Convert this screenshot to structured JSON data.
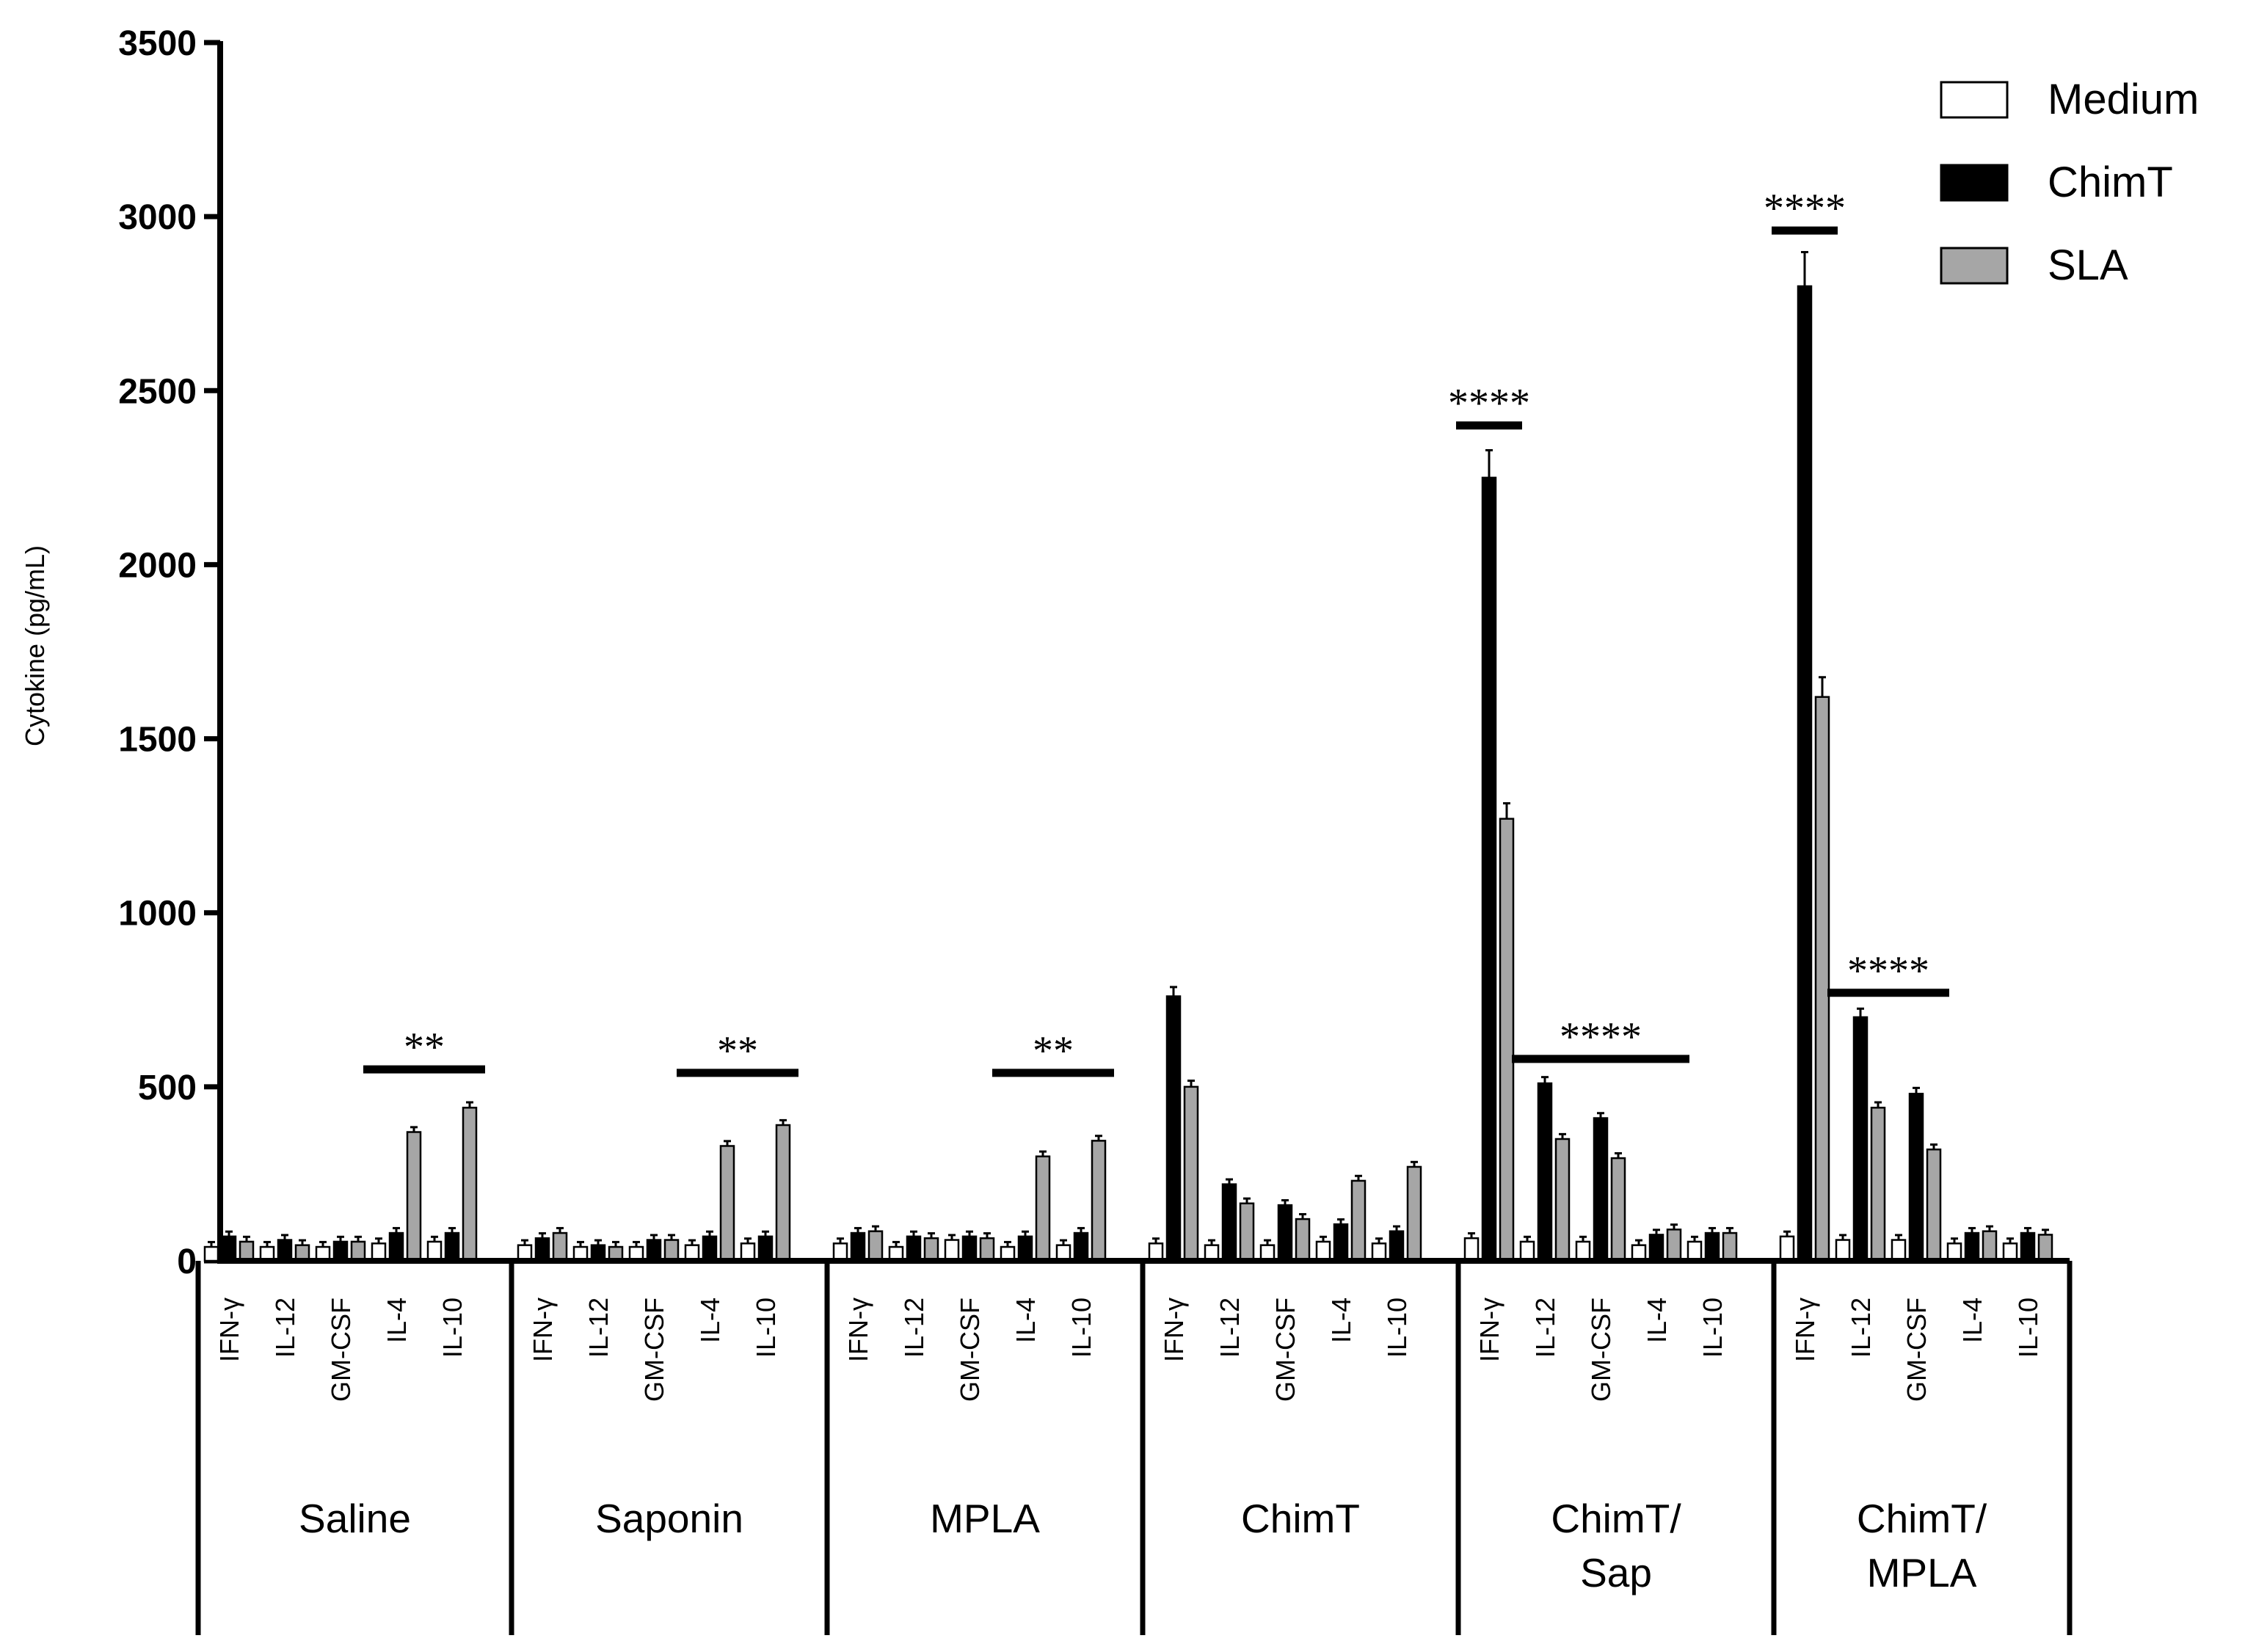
{
  "chart_data": {
    "type": "bar",
    "title": "",
    "xlabel": "",
    "ylabel": "Cytokine (pg/mL)",
    "ylim": [
      0,
      3500
    ],
    "yticks": [
      0,
      500,
      1000,
      1500,
      2000,
      2500,
      3000,
      3500
    ],
    "ytick_labels": [
      "0",
      "500",
      "1000",
      "1500",
      "2000",
      "2500",
      "3000",
      "3500"
    ],
    "cytokines": [
      "IFN-γ",
      "IL-12",
      "GM-CSF",
      "IL-4",
      "IL-10"
    ],
    "legend": [
      {
        "name": "Medium",
        "color": "#ffffff"
      },
      {
        "name": "ChimT",
        "color": "#000000"
      },
      {
        "name": "SLA",
        "color": "#a6a6a6"
      }
    ],
    "groups": [
      {
        "name": "Saline",
        "label_lines": [
          "Saline"
        ],
        "values": [
          [
            40,
            70,
            55
          ],
          [
            40,
            60,
            45
          ],
          [
            40,
            55,
            55
          ],
          [
            50,
            80,
            370
          ],
          [
            55,
            80,
            440
          ]
        ],
        "significance": [
          {
            "text": "**",
            "from": 3,
            "to": 4,
            "y": 550
          }
        ]
      },
      {
        "name": "Saponin",
        "label_lines": [
          "Saponin"
        ],
        "values": [
          [
            45,
            65,
            80
          ],
          [
            40,
            45,
            40
          ],
          [
            40,
            60,
            60
          ],
          [
            45,
            70,
            330
          ],
          [
            50,
            70,
            390
          ]
        ],
        "significance": [
          {
            "text": "**",
            "from": 3,
            "to": 4,
            "y": 540
          }
        ]
      },
      {
        "name": "MPLA",
        "label_lines": [
          "MPLA"
        ],
        "values": [
          [
            50,
            80,
            85
          ],
          [
            40,
            70,
            65
          ],
          [
            60,
            70,
            65
          ],
          [
            40,
            70,
            300
          ],
          [
            45,
            80,
            345
          ]
        ],
        "significance": [
          {
            "text": "**",
            "from": 3,
            "to": 4,
            "y": 540
          }
        ]
      },
      {
        "name": "ChimT",
        "label_lines": [
          "ChimT"
        ],
        "values": [
          [
            50,
            760,
            500
          ],
          [
            45,
            220,
            165
          ],
          [
            45,
            160,
            120
          ],
          [
            55,
            105,
            230
          ],
          [
            50,
            85,
            270
          ]
        ],
        "significance": []
      },
      {
        "name": "ChimT/Sap",
        "label_lines": [
          "ChimT/",
          "Sap"
        ],
        "values": [
          [
            65,
            2250,
            1270
          ],
          [
            55,
            510,
            350
          ],
          [
            55,
            410,
            295
          ],
          [
            45,
            75,
            90
          ],
          [
            55,
            80,
            80
          ]
        ],
        "significance": [
          {
            "text": "****",
            "from": 0,
            "to": 0,
            "y": 2400
          },
          {
            "text": "****",
            "from": 1,
            "to": 3,
            "y": 580
          }
        ]
      },
      {
        "name": "ChimT/MPLA",
        "label_lines": [
          "ChimT/",
          "MPLA"
        ],
        "values": [
          [
            70,
            2800,
            1620
          ],
          [
            60,
            700,
            440
          ],
          [
            60,
            480,
            320
          ],
          [
            50,
            80,
            85
          ],
          [
            50,
            80,
            75
          ]
        ],
        "significance": [
          {
            "text": "****",
            "from": 0,
            "to": 0,
            "y": 2960
          },
          {
            "text": "****",
            "from": 1,
            "to": 2,
            "y": 770
          }
        ]
      }
    ]
  }
}
